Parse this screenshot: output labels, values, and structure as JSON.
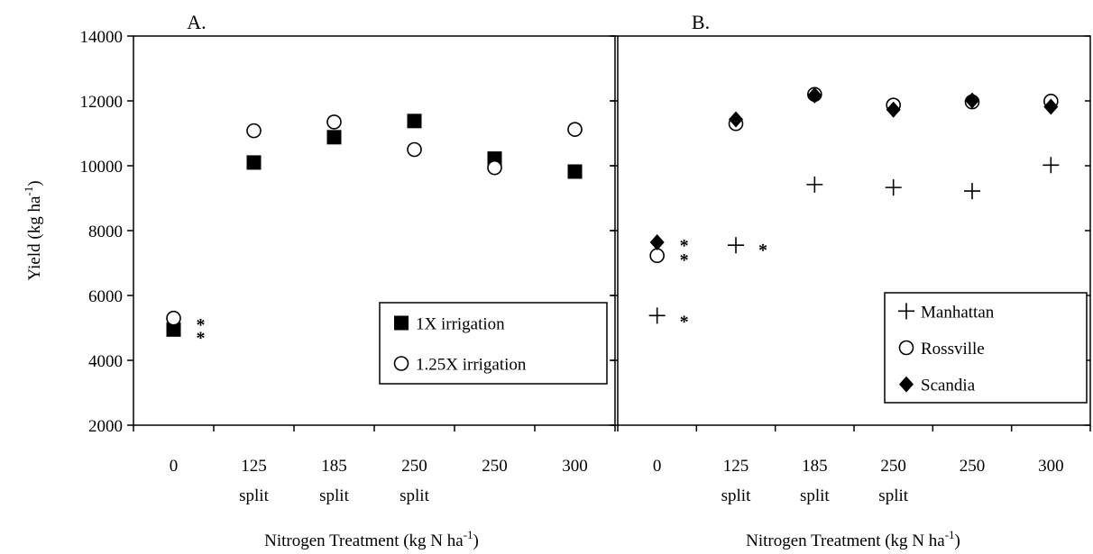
{
  "figure": {
    "ylabel": "Yield (kg ha",
    "ylabel_sup": "-1",
    "ylabel_end": ")",
    "xlabel": "Nitrogen Treatment (kg N ha",
    "xlabel_sup": "-1",
    "xlabel_end": ")"
  },
  "chart_data": [
    {
      "type": "scatter",
      "panel_label": "A.",
      "categories": [
        "0",
        "125",
        "185",
        "250",
        "250",
        "300"
      ],
      "category_sublabels": [
        "",
        "split",
        "split",
        "split",
        "",
        ""
      ],
      "ylim": [
        2000,
        14000
      ],
      "yticks": [
        2000,
        4000,
        6000,
        8000,
        10000,
        12000,
        14000
      ],
      "legend_position": "bottom-right",
      "series": [
        {
          "name": "1X irrigation",
          "marker": "filled-square",
          "values": [
            4950,
            10100,
            10880,
            11380,
            10220,
            9820
          ]
        },
        {
          "name": "1.25X irrigation",
          "marker": "open-circle",
          "values": [
            5300,
            11080,
            11350,
            10500,
            9940,
            11120
          ]
        }
      ],
      "annotations": [
        {
          "category_index": 0,
          "text": "*",
          "y": 5250
        },
        {
          "category_index": 0,
          "text": "*",
          "y": 4850
        }
      ]
    },
    {
      "type": "scatter",
      "panel_label": "B.",
      "categories": [
        "0",
        "125",
        "185",
        "250",
        "250",
        "300"
      ],
      "category_sublabels": [
        "",
        "split",
        "split",
        "split",
        "",
        ""
      ],
      "ylim": [
        2000,
        14000
      ],
      "legend_position": "bottom-right",
      "series": [
        {
          "name": "Manhattan",
          "marker": "plus",
          "values": [
            5380,
            7550,
            9420,
            9330,
            9220,
            10020
          ]
        },
        {
          "name": "Rossville",
          "marker": "open-circle",
          "values": [
            7230,
            11300,
            12200,
            11870,
            11970,
            11990
          ]
        },
        {
          "name": "Scandia",
          "marker": "filled-diamond",
          "values": [
            7640,
            11430,
            12170,
            11730,
            12010,
            11820
          ]
        }
      ],
      "annotations": [
        {
          "category_index": 0,
          "text": "*",
          "y": 7700
        },
        {
          "category_index": 0,
          "text": "*",
          "y": 7250
        },
        {
          "category_index": 0,
          "text": "*",
          "y": 5350
        },
        {
          "category_index": 1,
          "text": "*",
          "y": 7550
        }
      ]
    }
  ]
}
